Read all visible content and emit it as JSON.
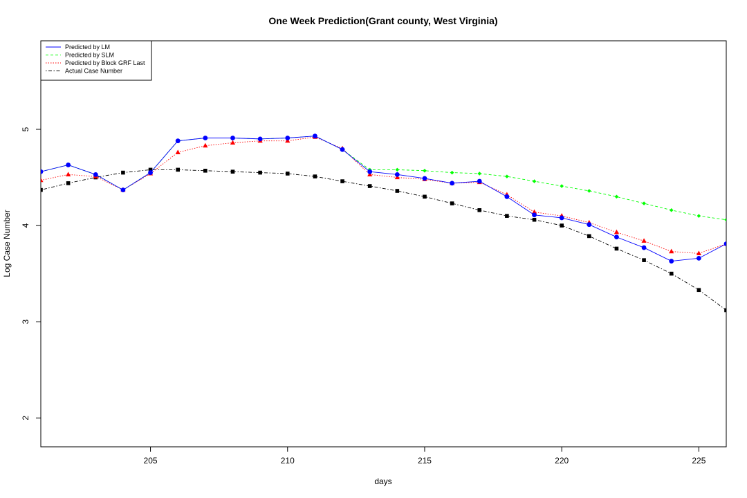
{
  "chart_data": {
    "type": "line",
    "title": "One Week Prediction(Grant county, West Virginia)",
    "xlabel": "days",
    "ylabel": "Log Case Number",
    "xlim": [
      201,
      226
    ],
    "ylim": [
      1.7,
      5.92
    ],
    "x_ticks": [
      205,
      210,
      215,
      220,
      225
    ],
    "y_ticks": [
      2,
      3,
      4,
      5
    ],
    "x": [
      201,
      202,
      203,
      204,
      205,
      206,
      207,
      208,
      209,
      210,
      211,
      212,
      213,
      214,
      215,
      216,
      217,
      218,
      219,
      220,
      221,
      222,
      223,
      224,
      225,
      226
    ],
    "legend_position": "top-left",
    "series": [
      {
        "name": "Predicted by LM",
        "color": "#0000ff",
        "line_style": "solid",
        "marker": "circle",
        "values": [
          4.56,
          4.63,
          4.53,
          4.37,
          4.55,
          4.88,
          4.91,
          4.91,
          4.9,
          4.91,
          4.93,
          4.79,
          4.56,
          4.53,
          4.49,
          4.44,
          4.46,
          4.3,
          4.11,
          4.08,
          4.01,
          3.88,
          3.77,
          3.63,
          3.66,
          3.81
        ]
      },
      {
        "name": "Predicted by SLM",
        "color": "#00ff00",
        "line_style": "dashed",
        "marker": "diamond",
        "values": [
          4.56,
          4.63,
          4.53,
          4.37,
          4.55,
          4.88,
          4.91,
          4.91,
          4.9,
          4.91,
          4.93,
          4.79,
          4.58,
          4.58,
          4.57,
          4.55,
          4.54,
          4.51,
          4.46,
          4.41,
          4.36,
          4.3,
          4.23,
          4.16,
          4.1,
          4.06
        ]
      },
      {
        "name": "Predicted by Block GRF Last",
        "color": "#ff0000",
        "line_style": "dotted",
        "marker": "triangle",
        "values": [
          4.47,
          4.53,
          4.51,
          4.37,
          4.54,
          4.76,
          4.83,
          4.86,
          4.88,
          4.88,
          4.92,
          4.8,
          4.53,
          4.5,
          4.48,
          4.44,
          4.45,
          4.32,
          4.14,
          4.1,
          4.03,
          3.93,
          3.84,
          3.73,
          3.71,
          3.81
        ]
      },
      {
        "name": "Actual Case Number",
        "color": "#000000",
        "line_style": "dashdot",
        "marker": "square",
        "values": [
          4.37,
          4.44,
          4.5,
          4.55,
          4.58,
          4.58,
          4.57,
          4.56,
          4.55,
          4.54,
          4.51,
          4.46,
          4.41,
          4.36,
          4.3,
          4.23,
          4.16,
          4.1,
          4.06,
          4.0,
          3.89,
          3.76,
          3.64,
          3.5,
          3.33,
          3.12
        ]
      }
    ]
  }
}
